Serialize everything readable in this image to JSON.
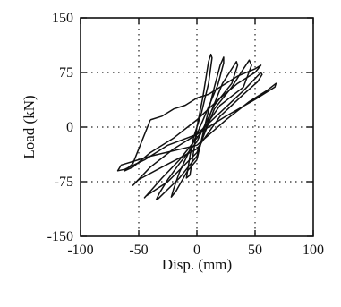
{
  "chart_data": {
    "type": "line",
    "title": "",
    "xlabel": "Disp. (mm)",
    "ylabel": "Load (kN)",
    "xlim": [
      -100,
      100
    ],
    "ylim": [
      -150,
      150
    ],
    "x_ticks": [
      -100,
      -50,
      0,
      50,
      100
    ],
    "y_ticks": [
      -150,
      -75,
      0,
      75,
      150
    ],
    "x_tick_labels": [
      "-100",
      "-50",
      "0",
      "50",
      "100"
    ],
    "y_tick_labels": [
      "-150",
      "-75",
      "0",
      "75",
      "150"
    ],
    "grid": true,
    "series": [
      {
        "x": [
          0,
          5,
          8,
          10,
          12,
          13,
          10,
          4,
          0,
          -3,
          -6,
          -8,
          -9,
          -6,
          -2,
          0
        ],
        "y": [
          0,
          40,
          70,
          90,
          100,
          95,
          60,
          20,
          0,
          -15,
          -40,
          -60,
          -70,
          -66,
          -25,
          0
        ]
      },
      {
        "x": [
          0,
          8,
          15,
          20,
          23,
          23,
          18,
          8,
          0,
          -8,
          -15,
          -20,
          -22,
          -18,
          -8,
          0
        ],
        "y": [
          -45,
          10,
          55,
          85,
          96,
          88,
          58,
          20,
          -10,
          -38,
          -62,
          -85,
          -96,
          -88,
          -60,
          -45
        ]
      },
      {
        "x": [
          0,
          12,
          22,
          30,
          34,
          35,
          30,
          15,
          0,
          -15,
          -25,
          -32,
          -35,
          -33,
          -15,
          0
        ],
        "y": [
          -40,
          20,
          60,
          80,
          90,
          85,
          60,
          30,
          -20,
          -50,
          -72,
          -90,
          -100,
          -98,
          -70,
          -40
        ]
      },
      {
        "x": [
          0,
          15,
          30,
          40,
          45,
          47,
          40,
          20,
          0,
          -15,
          -30,
          -40,
          -45,
          -44,
          -25,
          0
        ],
        "y": [
          -35,
          25,
          55,
          80,
          92,
          85,
          55,
          30,
          -15,
          -45,
          -70,
          -88,
          -97,
          -95,
          -75,
          -35
        ]
      },
      {
        "x": [
          0,
          20,
          40,
          52,
          56,
          55,
          40,
          20,
          0,
          -20,
          -40,
          -52,
          -55,
          -50,
          -30,
          0
        ],
        "y": [
          -30,
          15,
          45,
          62,
          72,
          75,
          50,
          20,
          -10,
          -30,
          -55,
          -75,
          -80,
          -72,
          -55,
          -30
        ]
      },
      {
        "x": [
          0,
          25,
          45,
          60,
          68,
          67,
          50,
          25,
          0,
          -25,
          -45,
          -62,
          -68,
          -65,
          -40,
          0
        ],
        "y": [
          -25,
          10,
          35,
          50,
          60,
          55,
          38,
          15,
          -10,
          -25,
          -45,
          -58,
          -60,
          -52,
          -40,
          -25
        ]
      },
      {
        "x": [
          -40,
          -30,
          -20,
          -10,
          0,
          10,
          20,
          35,
          50,
          55,
          50,
          35,
          20,
          0,
          -20,
          -40,
          -55,
          -62,
          -55,
          -40
        ],
        "y": [
          10,
          15,
          25,
          30,
          40,
          45,
          55,
          70,
          80,
          85,
          75,
          60,
          40,
          10,
          -15,
          -35,
          -55,
          -60,
          -50,
          10
        ]
      }
    ]
  }
}
